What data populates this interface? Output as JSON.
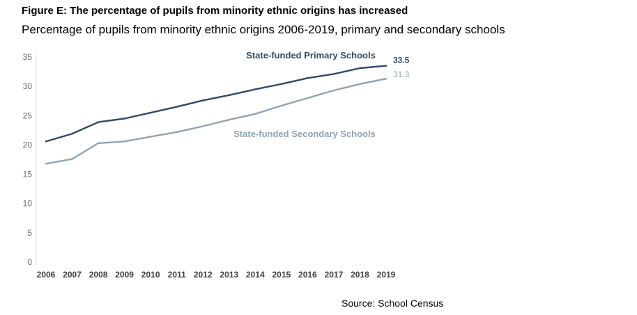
{
  "title": "Figure E: The percentage of pupils from minority ethnic origins has increased",
  "subtitle": "Percentage of pupils from minority ethnic origins 2006-2019, primary and secondary schools",
  "source": "Source: School Census",
  "chart_data": {
    "type": "line",
    "title": "Figure E: The percentage of pupils from minority ethnic origins has increased",
    "subtitle": "Percentage of pupils from minority ethnic origins 2006-2019, primary and secondary schools",
    "xlabel": "",
    "ylabel": "",
    "ylim": [
      0,
      35
    ],
    "yticks": [
      0,
      5,
      10,
      15,
      20,
      25,
      30,
      35
    ],
    "x": [
      "2006",
      "2007",
      "2008",
      "2009",
      "2010",
      "2011",
      "2012",
      "2013",
      "2014",
      "2015",
      "2016",
      "2017",
      "2018",
      "2019"
    ],
    "grid": false,
    "series": [
      {
        "name": "State-funded Primary Schools",
        "color": "#2f4a6b",
        "values": [
          20.6,
          21.9,
          23.9,
          24.5,
          25.5,
          26.5,
          27.6,
          28.5,
          29.5,
          30.4,
          31.4,
          32.1,
          33.1,
          33.5
        ],
        "end_label": "33.5"
      },
      {
        "name": "State-funded Secondary Schools",
        "color": "#8fa3b3",
        "values": [
          16.8,
          17.6,
          20.3,
          20.6,
          21.4,
          22.2,
          23.2,
          24.3,
          25.3,
          26.7,
          28.0,
          29.3,
          30.4,
          31.3
        ],
        "end_label": "31.3"
      }
    ]
  }
}
